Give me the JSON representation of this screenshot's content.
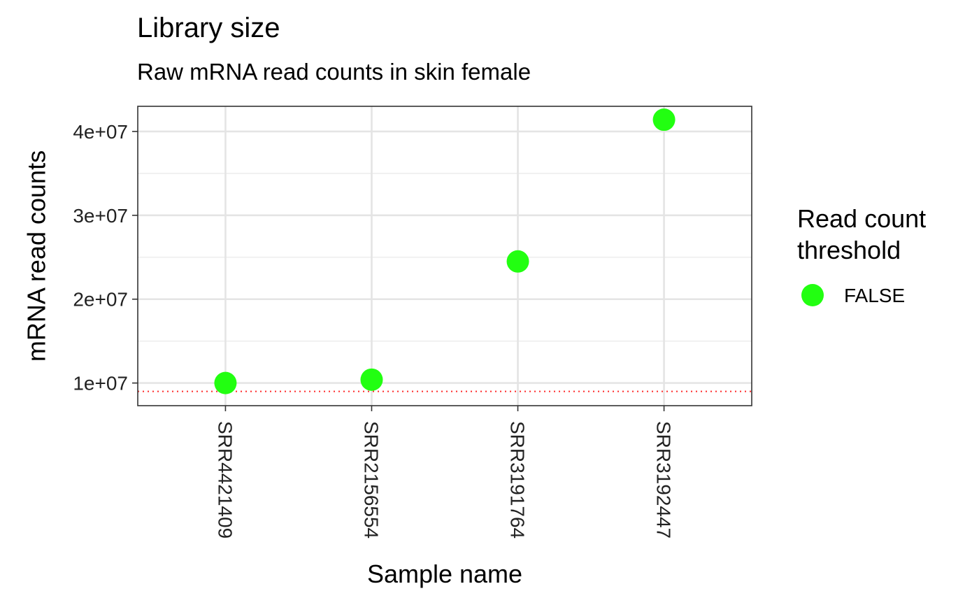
{
  "chart_data": {
    "type": "scatter",
    "title": "Library size",
    "subtitle": "Raw mRNA read counts in skin female",
    "xlabel": "Sample name",
    "ylabel": "mRNA read counts",
    "categories": [
      "SRR4421409",
      "SRR2156554",
      "SRR3191764",
      "SRR3192447"
    ],
    "values": [
      10000000,
      10400000,
      24500000,
      41400000
    ],
    "point_color": "#22ff11",
    "ylim": [
      7300000,
      43000000
    ],
    "y_ticks": [
      10000000,
      20000000,
      30000000,
      40000000
    ],
    "y_tick_labels": [
      "1e+07",
      "2e+07",
      "3e+07",
      "4e+07"
    ],
    "threshold": {
      "value": 9000000,
      "color": "#ff2a2a",
      "style": "dotted"
    },
    "legend": {
      "title": "Read count threshold",
      "position": "right",
      "entries": [
        {
          "label": "FALSE",
          "color": "#22ff11"
        }
      ]
    },
    "grid": true
  }
}
